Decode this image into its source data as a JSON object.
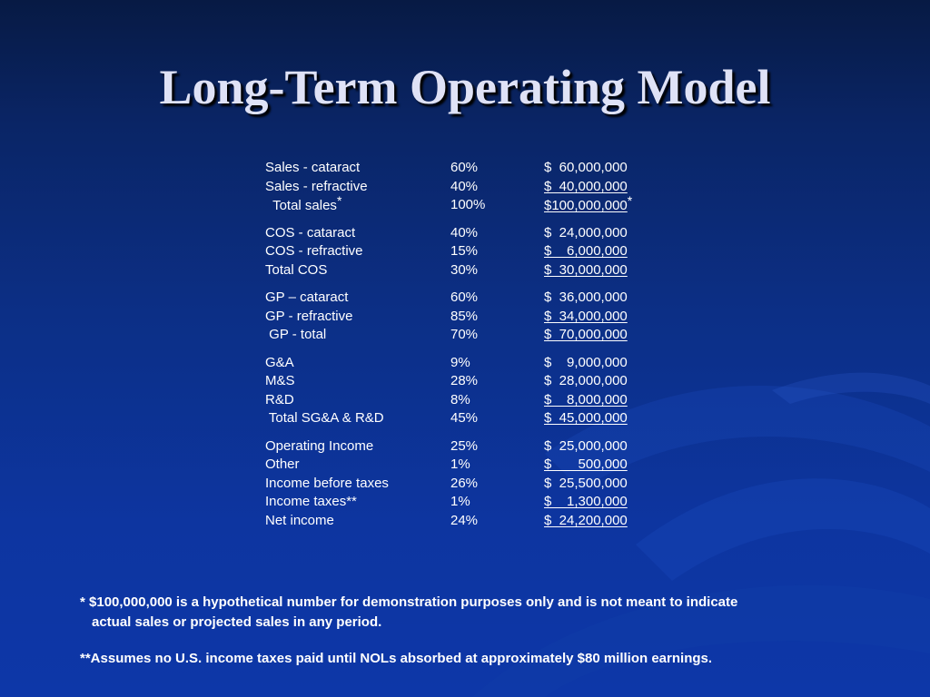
{
  "slide": {
    "title": "Long-Term Operating Model"
  },
  "table": {
    "groups": [
      {
        "rows": [
          {
            "label": "Sales - cataract",
            "pct": "60%",
            "amount": "$  60,000,000",
            "underline": false
          },
          {
            "label": "Sales - refractive",
            "pct": "40%",
            "amount": "$  40,000,000",
            "underline": true
          },
          {
            "label": "  Total sales",
            "label_mark": "*",
            "pct": "100%",
            "amount": "$100,000,000",
            "amount_mark": "*",
            "underline": true
          }
        ]
      },
      {
        "rows": [
          {
            "label": "COS - cataract",
            "pct": "40%",
            "amount": "$  24,000,000",
            "underline": false
          },
          {
            "label": "COS - refractive",
            "pct": "15%",
            "amount": "$    6,000,000",
            "underline": true
          },
          {
            "label": "Total COS",
            "pct": "30%",
            "amount": "$  30,000,000",
            "underline": true
          }
        ]
      },
      {
        "rows": [
          {
            "label": "GP – cataract",
            "pct": "60%",
            "amount": "$  36,000,000",
            "underline": false
          },
          {
            "label": "GP - refractive",
            "pct": "85%",
            "amount": "$  34,000,000",
            "underline": true
          },
          {
            "label": " GP - total",
            "pct": "70%",
            "amount": "$  70,000,000",
            "underline": true
          }
        ]
      },
      {
        "rows": [
          {
            "label": "G&A",
            "pct": "9%",
            "amount": "$    9,000,000",
            "underline": false
          },
          {
            "label": "M&S",
            "pct": "28%",
            "amount": "$  28,000,000",
            "underline": false
          },
          {
            "label": "R&D",
            "pct": "8%",
            "amount": "$    8,000,000",
            "underline": true
          },
          {
            "label": " Total SG&A & R&D",
            "pct": "45%",
            "amount": "$  45,000,000",
            "underline": true
          }
        ]
      },
      {
        "rows": [
          {
            "label": "Operating Income",
            "pct": "25%",
            "amount": "$  25,000,000",
            "underline": false
          },
          {
            "label": "Other",
            "pct": "1%",
            "amount": "$       500,000",
            "underline": true
          },
          {
            "label": "Income before taxes",
            "pct": "26%",
            "amount": "$  25,500,000",
            "underline": false
          },
          {
            "label": "Income taxes**",
            "pct": "1%",
            "amount": "$    1,300,000",
            "underline": true
          },
          {
            "label": "Net income",
            "pct": "24%",
            "amount": "$  24,200,000",
            "underline": true
          }
        ]
      }
    ]
  },
  "footnotes": {
    "note1_line1": "* $100,000,000 is a hypothetical number for demonstration purposes only and is not meant to indicate",
    "note1_line2": "actual sales or projected sales in any period.",
    "note2": "**Assumes no U.S. income taxes paid until NOLs absorbed at approximately $80 million earnings."
  },
  "colors": {
    "background_top": "#071a44",
    "background_bottom": "#0d37a8",
    "title_text": "#dfe2f6",
    "body_text": "#ffffff"
  }
}
